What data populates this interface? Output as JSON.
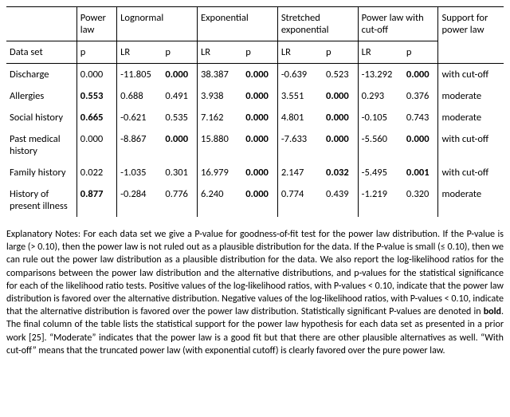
{
  "table": {
    "header_groups": {
      "dataset": "Data set",
      "powerlaw": "Power law",
      "lognormal": "Lognormal",
      "exponential": "Exponential",
      "stretched": "Stretched exponential",
      "cutoff": "Power law with cut-off",
      "support": "Support for power law"
    },
    "sub_headers": {
      "p": "p",
      "lr": "LR"
    },
    "rows": [
      {
        "dataset": "Discharge",
        "pl_p": "0.000",
        "pl_p_bold": false,
        "ln_lr": "-11.805",
        "ln_p": "0.000",
        "ln_p_bold": true,
        "ex_lr": "38.387",
        "ex_p": "0.000",
        "ex_p_bold": true,
        "se_lr": "-0.639",
        "se_p": "0.523",
        "se_p_bold": false,
        "co_lr": "-13.292",
        "co_p": "0.000",
        "co_p_bold": true,
        "support": "with cut-off"
      },
      {
        "dataset": "Allergies",
        "pl_p": "0.553",
        "pl_p_bold": true,
        "ln_lr": "0.688",
        "ln_p": "0.491",
        "ln_p_bold": false,
        "ex_lr": "3.938",
        "ex_p": "0.000",
        "ex_p_bold": true,
        "se_lr": "3.551",
        "se_p": "0.000",
        "se_p_bold": true,
        "co_lr": "0.293",
        "co_p": "0.376",
        "co_p_bold": false,
        "support": "moderate"
      },
      {
        "dataset": "Social history",
        "pl_p": "0.665",
        "pl_p_bold": true,
        "ln_lr": "-0.621",
        "ln_p": "0.535",
        "ln_p_bold": false,
        "ex_lr": "7.162",
        "ex_p": "0.000",
        "ex_p_bold": true,
        "se_lr": "4.801",
        "se_p": "0.000",
        "se_p_bold": true,
        "co_lr": "-0.105",
        "co_p": "0.743",
        "co_p_bold": false,
        "support": "moderate"
      },
      {
        "dataset": "Past medical history",
        "pl_p": "0.000",
        "pl_p_bold": false,
        "ln_lr": "-8.867",
        "ln_p": "0.000",
        "ln_p_bold": true,
        "ex_lr": "15.880",
        "ex_p": "0.000",
        "ex_p_bold": true,
        "se_lr": "-7.633",
        "se_p": "0.000",
        "se_p_bold": true,
        "co_lr": "-5.560",
        "co_p": "0.000",
        "co_p_bold": true,
        "support": "with cut-off"
      },
      {
        "dataset": "Family history",
        "pl_p": "0.022",
        "pl_p_bold": false,
        "ln_lr": "-1.035",
        "ln_p": "0.301",
        "ln_p_bold": false,
        "ex_lr": "16.979",
        "ex_p": "0.000",
        "ex_p_bold": true,
        "se_lr": "2.147",
        "se_p": "0.032",
        "se_p_bold": true,
        "co_lr": "-5.495",
        "co_p": "0.001",
        "co_p_bold": true,
        "support": "with cut-off"
      },
      {
        "dataset": "History of present illness",
        "pl_p": "0.877",
        "pl_p_bold": true,
        "ln_lr": "-0.284",
        "ln_p": "0.776",
        "ln_p_bold": false,
        "ex_lr": "6.240",
        "ex_p": "0.000",
        "ex_p_bold": true,
        "se_lr": "0.774",
        "se_p": "0.439",
        "se_p_bold": false,
        "co_lr": "-1.219",
        "co_p": "0.320",
        "co_p_bold": false,
        "support": "moderate"
      }
    ]
  },
  "notes_html": "Explanatory Notes: For each data set we give a P-value for goodness-of-fit test for the power law distribution. If the P-value is large (> 0.10), then the power law is not ruled out as a plausible distribution for the data. If the P-value is small (≤ 0.10), then we can rule out the power law distribution as a plausible distribution for the data. We also report the log-likelihood ratios for the comparisons between the power law distribution and the alternative distributions, and p-values for the statistical significance for each of the likelihood ratio tests. Positive values of the log-likelihood ratios, with P-values < 0.10, indicate that the power law distribution is favored over the alternative distribution. Negative values of the log-likelihood ratios, with P-values < 0.10, indicate that the alternative distribution is favored over the power law distribution. Statistically significant P-values are denoted in <b>bold</b>. The final column of the table lists the statistical support for the power law hypothesis for each data set as presented in a prior work [25]. “Moderate” indicates that the power law is a good fit but that there are other plausible alternatives as well. “With cut-off” means that the truncated power law (with exponential cutoff) is clearly favored over the pure power law.",
  "style": {
    "font_family": "Calibri",
    "font_size_pt": 10,
    "text_color": "#000000",
    "background_color": "#ffffff",
    "border_color": "#000000"
  }
}
